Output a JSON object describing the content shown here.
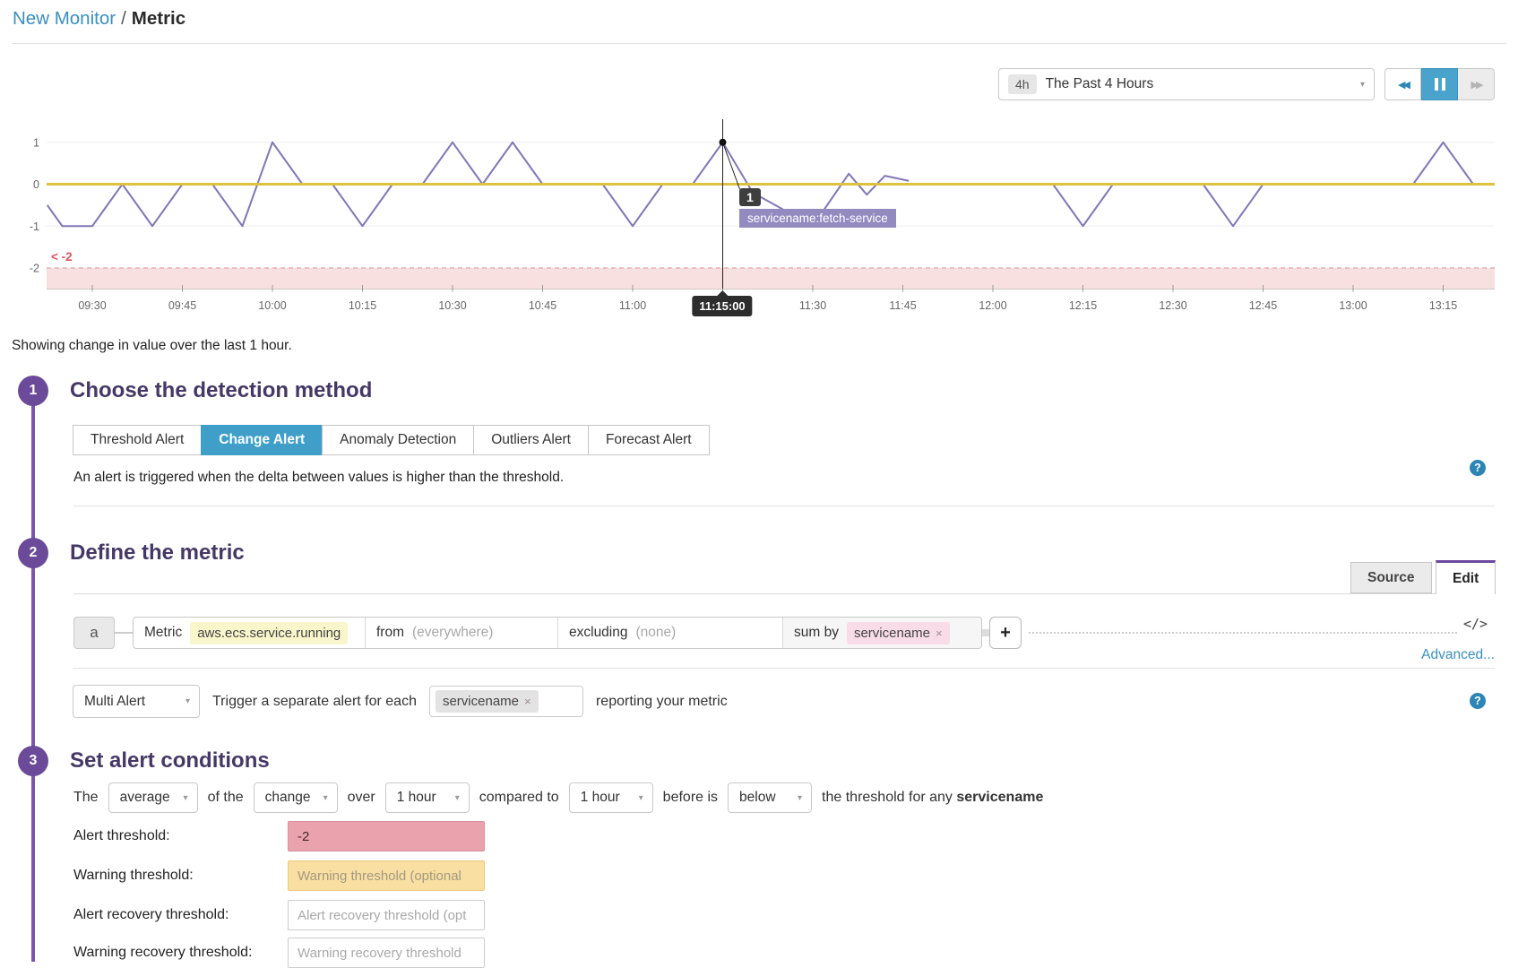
{
  "breadcrumb": {
    "parent": "New Monitor",
    "separator": "/",
    "current": "Metric"
  },
  "toolbar": {
    "range_badge": "4h",
    "range_label": "The Past 4 Hours",
    "caret": "▾"
  },
  "chart_data": {
    "type": "line",
    "x_ticks": [
      "09:30",
      "09:45",
      "10:00",
      "10:15",
      "10:30",
      "10:45",
      "11:00",
      "11:15",
      "11:30",
      "11:45",
      "12:00",
      "12:15",
      "12:30",
      "12:45",
      "13:00",
      "13:15"
    ],
    "y_ticks": [
      1,
      0,
      -1,
      -2
    ],
    "ylim": [
      -2.5,
      1.4
    ],
    "grid": "horizontal",
    "line_color": "#8277b8",
    "zero_line_color": "#dcc23f",
    "alert_zone": {
      "label": "< -2",
      "below": -2,
      "fill": "#f9e0e0",
      "edge_color": "#e5b1b1",
      "label_color": "#e0515f"
    },
    "cursor": {
      "time": "11:15:00",
      "minutes": 675,
      "value": 1
    },
    "tooltip": {
      "count": "1",
      "label": "servicename:fetch-service"
    },
    "series": [
      {
        "name": "servicename:fetch-service",
        "points_format": "[minutes_since_midnight, value]",
        "segments": [
          [
            [
              562.5,
              -0.5
            ],
            [
              565,
              -1
            ],
            [
              570,
              -1
            ],
            [
              575,
              0
            ],
            [
              580,
              -1
            ],
            [
              585,
              0
            ],
            [
              590,
              0
            ],
            [
              595,
              -1
            ],
            [
              600,
              1
            ],
            [
              605,
              0
            ],
            [
              610,
              0
            ],
            [
              615,
              -1
            ],
            [
              620,
              0
            ],
            [
              625,
              0
            ],
            [
              630,
              1
            ],
            [
              635,
              0
            ],
            [
              640,
              1
            ],
            [
              645,
              0
            ],
            [
              655,
              0
            ],
            [
              660,
              -1
            ],
            [
              665,
              0
            ],
            [
              670,
              0
            ],
            [
              675,
              1
            ],
            [
              680,
              -0.2
            ],
            [
              685,
              -0.6
            ],
            [
              690,
              -1
            ],
            [
              696,
              0.25
            ],
            [
              699,
              -0.25
            ],
            [
              702,
              0.2
            ],
            [
              706,
              0.08
            ]
          ],
          [
            [
              730,
              0
            ],
            [
              735,
              -1
            ],
            [
              740,
              0
            ],
            [
              755,
              0
            ],
            [
              760,
              -1
            ],
            [
              765,
              0
            ],
            [
              790,
              0
            ],
            [
              795,
              1
            ],
            [
              800,
              0
            ],
            [
              803.5,
              0
            ]
          ]
        ]
      }
    ]
  },
  "caption": "Showing change in value over the last 1 hour.",
  "steps": [
    {
      "num": "1",
      "title": "Choose the detection method"
    },
    {
      "num": "2",
      "title": "Define the metric"
    },
    {
      "num": "3",
      "title": "Set alert conditions"
    }
  ],
  "detection": {
    "tabs": [
      {
        "label": "Threshold Alert"
      },
      {
        "label": "Change Alert"
      },
      {
        "label": "Anomaly Detection"
      },
      {
        "label": "Outliers Alert"
      },
      {
        "label": "Forecast Alert"
      }
    ],
    "description": "An alert is triggered when the delta between values is higher than the threshold.",
    "help": "?"
  },
  "metric_section": {
    "source_tab": "Source",
    "edit_tab": "Edit",
    "scope_label": "a",
    "query": {
      "metric_label": "Metric",
      "metric_value": "aws.ecs.service.running",
      "from_label": "from",
      "from_value": "(everywhere)",
      "excluding_label": "excluding",
      "excluding_value": "(none)",
      "sum_by_label": "sum by",
      "sum_by_tag": "servicename",
      "tag_remove": "×"
    },
    "add_query_label": "+",
    "code_icon": "</>",
    "advanced_link": "Advanced..."
  },
  "multi_alert": {
    "selector": "Multi Alert",
    "caret": "▾",
    "text_before": "Trigger a separate alert for each",
    "tag": "servicename",
    "tag_remove": "×",
    "text_after": "reporting your metric",
    "help": "?"
  },
  "conditions": {
    "the": "The",
    "aggregation": "average",
    "of_the": "of the",
    "method": "change",
    "over": "over",
    "window": "1 hour",
    "compared_to": "compared to",
    "baseline": "1 hour",
    "before_is": "before is",
    "operator": "below",
    "tail": "the threshold for any",
    "group": "servicename",
    "caret": "▾"
  },
  "thresholds": {
    "rows": [
      {
        "label": "Alert threshold:",
        "value": "-2"
      },
      {
        "label": "Warning threshold:",
        "placeholder": "Warning threshold (optional"
      },
      {
        "label": "Alert recovery threshold:",
        "placeholder": "Alert recovery threshold (opt"
      },
      {
        "label": "Warning recovery threshold:",
        "placeholder": "Warning recovery threshold"
      }
    ]
  },
  "playback": {
    "rewind": "◀◀",
    "forward": "▶▶"
  }
}
